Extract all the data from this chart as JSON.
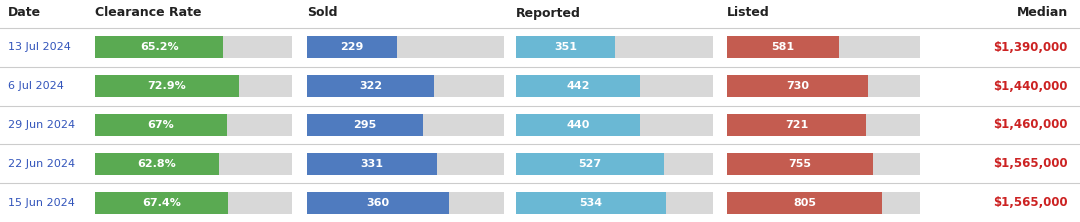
{
  "headers": [
    "Date",
    "Clearance Rate",
    "Sold",
    "Reported",
    "Listed",
    "Median"
  ],
  "rows": [
    {
      "date": "13 Jul 2024",
      "clearance_rate": 65.2,
      "clearance_rate_label": "65.2%",
      "sold": 229,
      "reported": 351,
      "listed": 581,
      "median": "$1,390,000"
    },
    {
      "date": "6 Jul 2024",
      "clearance_rate": 72.9,
      "clearance_rate_label": "72.9%",
      "sold": 322,
      "reported": 442,
      "listed": 730,
      "median": "$1,440,000"
    },
    {
      "date": "29 Jun 2024",
      "clearance_rate": 67.0,
      "clearance_rate_label": "67%",
      "sold": 295,
      "reported": 440,
      "listed": 721,
      "median": "$1,460,000"
    },
    {
      "date": "22 Jun 2024",
      "clearance_rate": 62.8,
      "clearance_rate_label": "62.8%",
      "sold": 331,
      "reported": 527,
      "listed": 755,
      "median": "$1,565,000"
    },
    {
      "date": "15 Jun 2024",
      "clearance_rate": 67.4,
      "clearance_rate_label": "67.4%",
      "sold": 360,
      "reported": 534,
      "listed": 805,
      "median": "$1,565,000"
    }
  ],
  "color_green": "#5aaa52",
  "color_blue": "#4f7bbf",
  "color_lightblue": "#6ab8d4",
  "color_red": "#c45c50",
  "color_bg_bar": "#d8d8d8",
  "color_header_text": "#222222",
  "color_date_text": "#3355bb",
  "color_bar_text": "#ffffff",
  "color_median_text": "#cc2222",
  "color_separator": "#cccccc",
  "color_bg": "#ffffff",
  "clearance_max": 100,
  "sold_max": 500,
  "reported_max": 700,
  "listed_max": 1000,
  "header_fontsize": 9.0,
  "bar_fontsize": 8.0,
  "date_fontsize": 8.0,
  "median_fontsize": 8.5
}
